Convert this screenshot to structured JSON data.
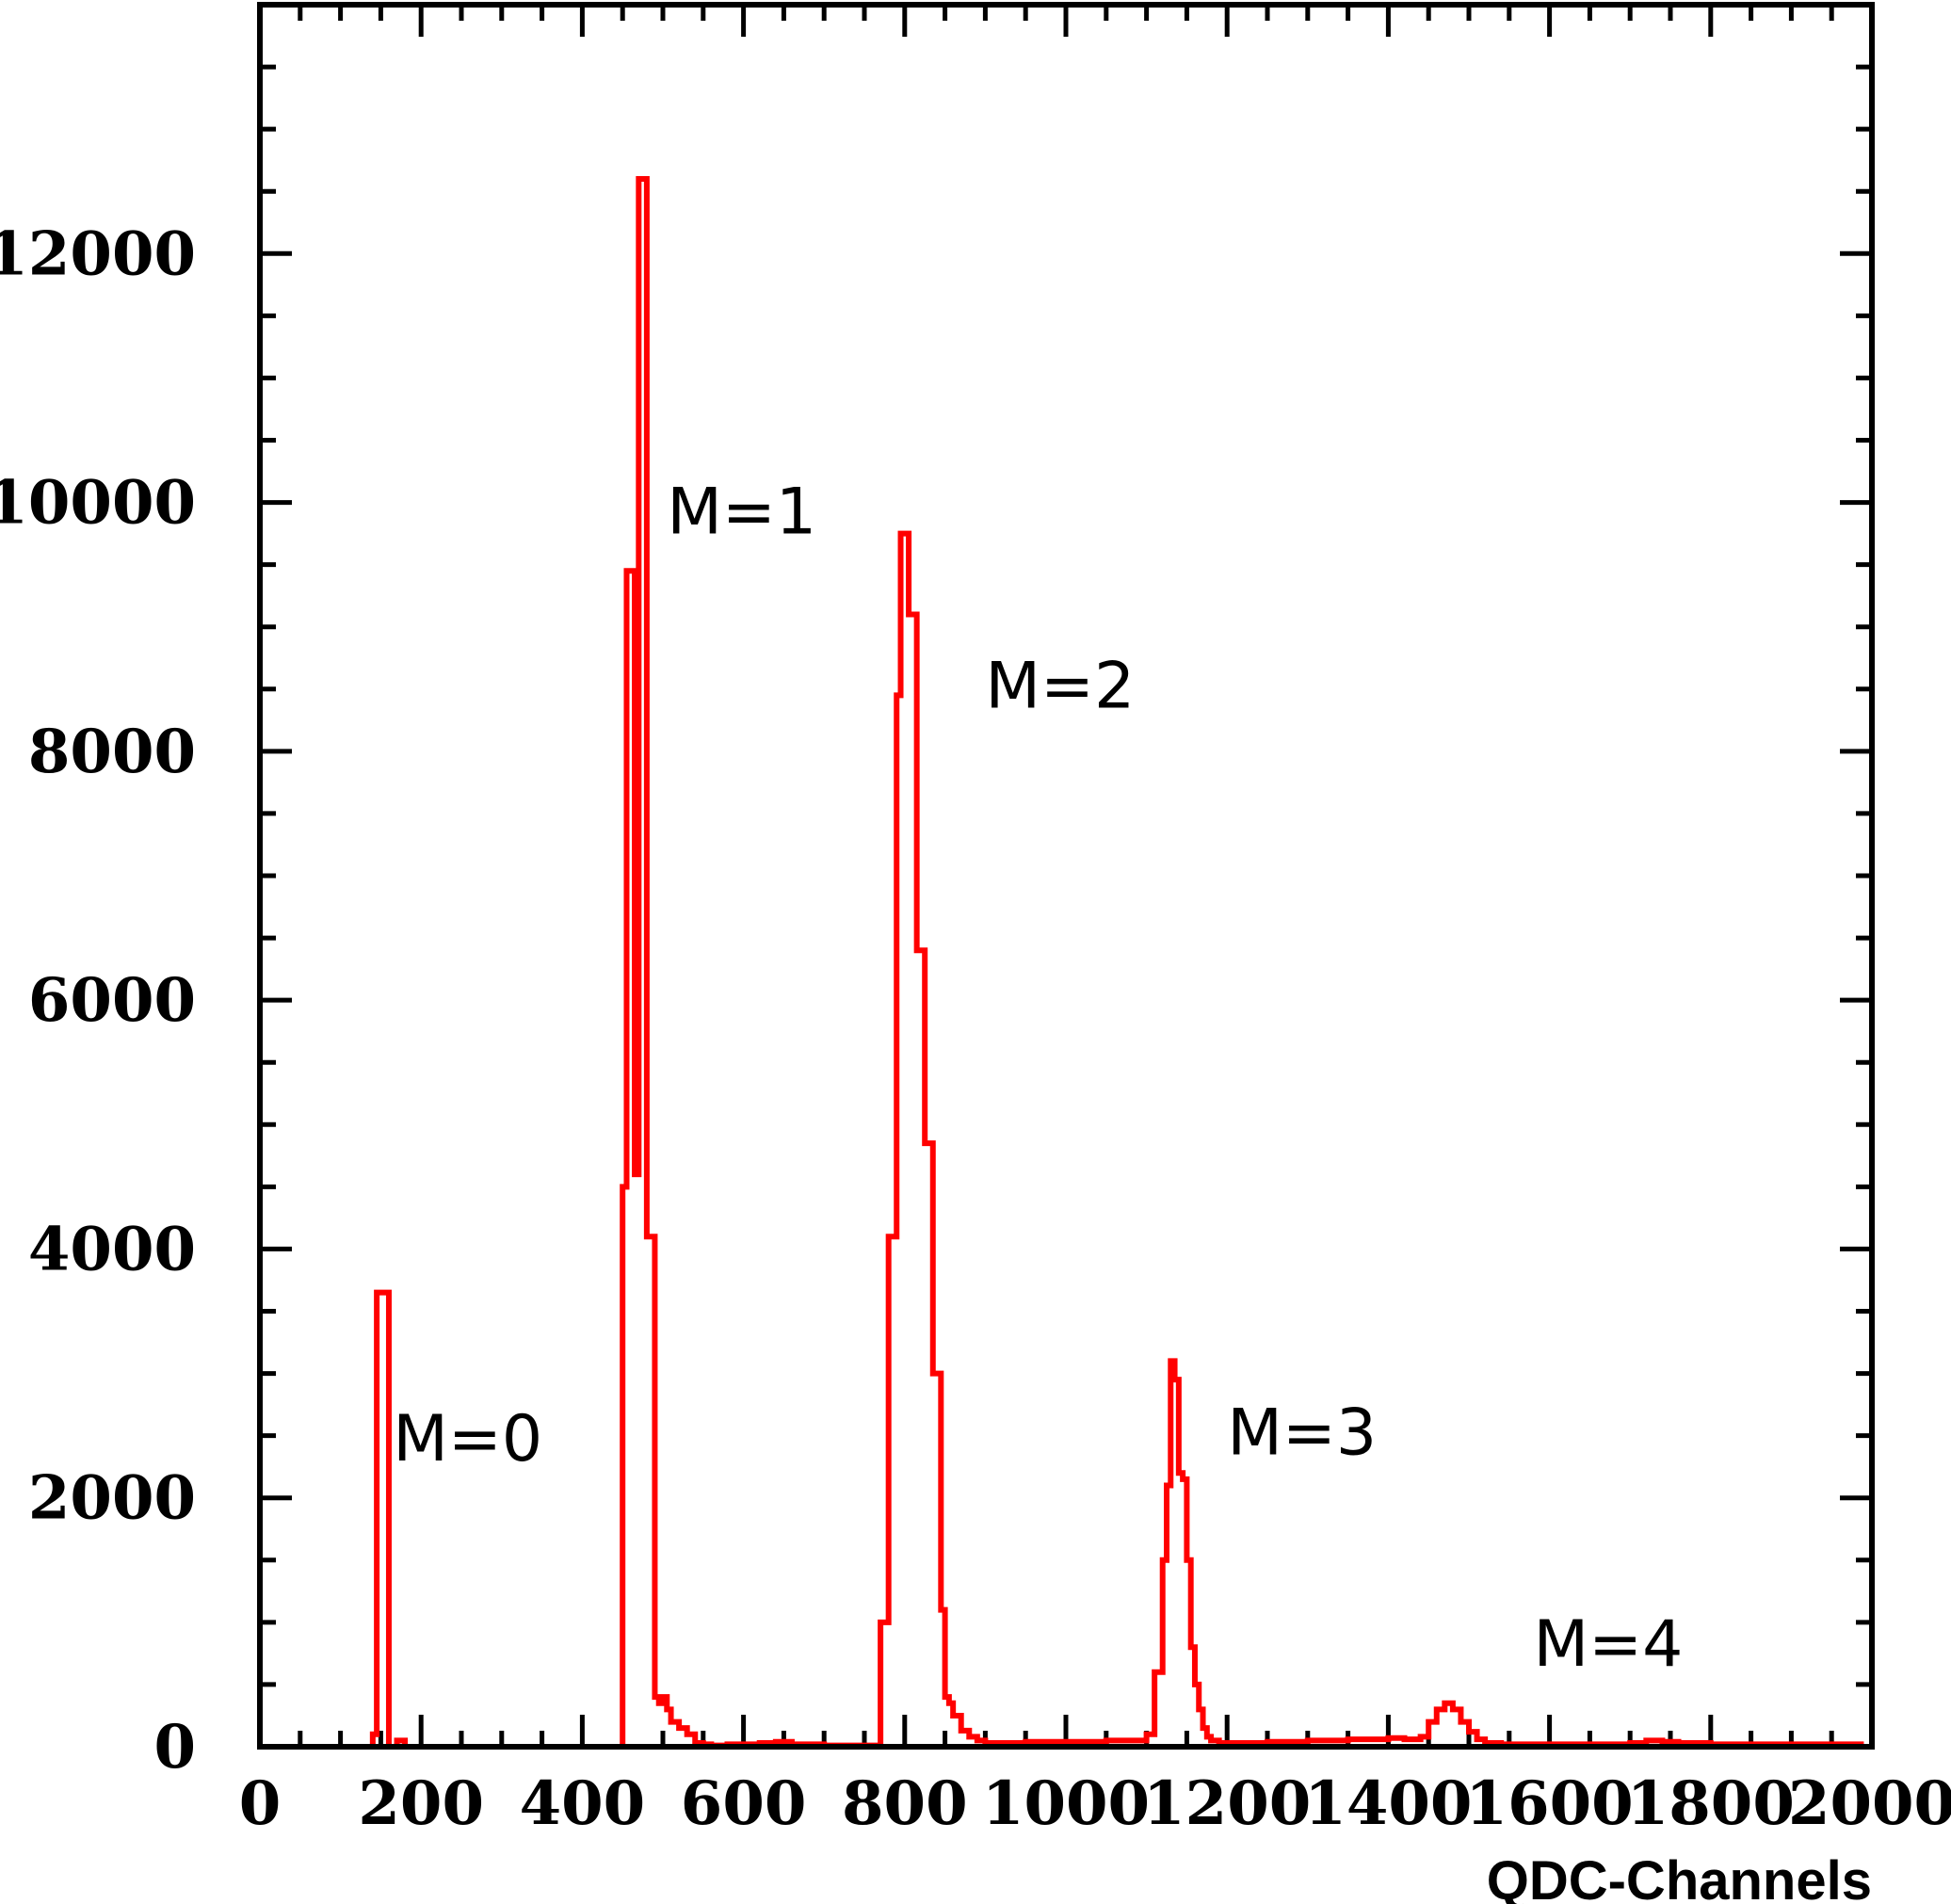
{
  "chart_data": {
    "type": "histogram-step",
    "title": "",
    "xlabel": "QDC-Channels",
    "ylabel": "",
    "xlim": [
      0,
      2000
    ],
    "ylim": [
      0,
      14000
    ],
    "xticks": [
      0,
      200,
      400,
      600,
      800,
      1000,
      1200,
      1400,
      1600,
      1800,
      2000
    ],
    "yticks": [
      0,
      2000,
      4000,
      6000,
      8000,
      10000,
      12000
    ],
    "xtick_labels": [
      "0",
      "200",
      "400",
      "600",
      "800",
      "1000",
      "1200",
      "1400",
      "1600",
      "1800",
      "2000"
    ],
    "ytick_labels": [
      "0",
      "2000",
      "4000",
      "6000",
      "8000",
      "10000",
      "12000"
    ],
    "grid": false,
    "line_color": "#ff0000",
    "series": [
      {
        "x": [
          20,
          140,
          145,
          150,
          160,
          170,
          180,
          200,
          450,
          455,
          460,
          465,
          470,
          475,
          480,
          485,
          490,
          495,
          500,
          505,
          510,
          520,
          530,
          540,
          550,
          560,
          570,
          580,
          600,
          620,
          640,
          660,
          700,
          770,
          780,
          790,
          795,
          800,
          805,
          810,
          815,
          820,
          825,
          830,
          835,
          840,
          845,
          850,
          855,
          860,
          870,
          880,
          890,
          900,
          920,
          950,
          1000,
          1050,
          1100,
          1110,
          1120,
          1125,
          1130,
          1135,
          1140,
          1145,
          1150,
          1155,
          1160,
          1165,
          1170,
          1175,
          1180,
          1190,
          1200,
          1250,
          1300,
          1350,
          1400,
          1420,
          1440,
          1450,
          1460,
          1470,
          1480,
          1490,
          1500,
          1510,
          1520,
          1540,
          1600,
          1650,
          1700,
          1720,
          1740,
          1760,
          1800,
          1850,
          1900,
          1950,
          1990
        ],
        "y": [
          0,
          100,
          3650,
          3650,
          0,
          50,
          0,
          0,
          4500,
          9450,
          9450,
          4600,
          12600,
          12600,
          4100,
          4100,
          400,
          350,
          400,
          300,
          200,
          150,
          100,
          30,
          20,
          10,
          10,
          20,
          20,
          30,
          40,
          20,
          10,
          1000,
          4100,
          8450,
          9750,
          9750,
          9100,
          9100,
          6400,
          6400,
          4850,
          4850,
          3000,
          3000,
          1100,
          400,
          350,
          250,
          130,
          80,
          50,
          30,
          30,
          40,
          40,
          50,
          100,
          600,
          1500,
          2100,
          3100,
          2950,
          2200,
          2150,
          1500,
          800,
          500,
          300,
          150,
          80,
          50,
          30,
          30,
          40,
          50,
          60,
          70,
          60,
          80,
          200,
          300,
          350,
          300,
          200,
          120,
          60,
          30,
          20,
          20,
          20,
          30,
          50,
          40,
          30,
          20,
          20,
          20,
          20
        ]
      }
    ],
    "annotations": [
      {
        "text": "M=0",
        "x": 165,
        "y": 2300
      },
      {
        "text": "M=1",
        "x": 505,
        "y": 9750
      },
      {
        "text": "M=2",
        "x": 900,
        "y": 8350
      },
      {
        "text": "M=3",
        "x": 1200,
        "y": 2350
      },
      {
        "text": "M=4",
        "x": 1580,
        "y": 650
      }
    ]
  }
}
